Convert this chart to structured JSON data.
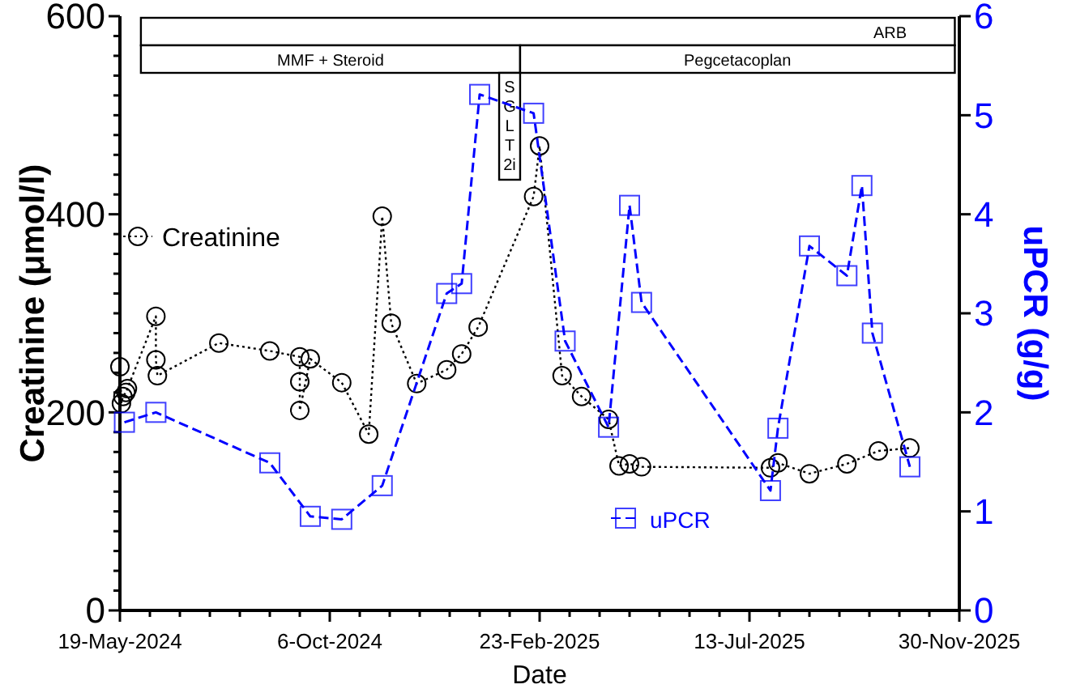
{
  "chart_data": {
    "type": "line",
    "xlabel": "Date",
    "ylabel": "Creatinine (μmol/l)",
    "y2label": "uPCR (g/g)",
    "xlim": [
      "2024-05-19",
      "2025-11-30"
    ],
    "xticks": [
      {
        "value": "2024-05-19",
        "label": "19-May-2024"
      },
      {
        "value": "2024-06-08",
        "label": null
      },
      {
        "value": "2024-06-28",
        "label": null
      },
      {
        "value": "2024-07-18",
        "label": null
      },
      {
        "value": "2024-08-07",
        "label": null
      },
      {
        "value": "2024-08-27",
        "label": null
      },
      {
        "value": "2024-09-16",
        "label": null
      },
      {
        "value": "2024-10-06",
        "label": "6-Oct-2024"
      },
      {
        "value": "2024-10-26",
        "label": null
      },
      {
        "value": "2024-11-15",
        "label": null
      },
      {
        "value": "2024-12-05",
        "label": null
      },
      {
        "value": "2024-12-25",
        "label": null
      },
      {
        "value": "2025-01-14",
        "label": null
      },
      {
        "value": "2025-02-03",
        "label": null
      },
      {
        "value": "2025-02-23",
        "label": "23-Feb-2025"
      },
      {
        "value": "2025-03-15",
        "label": null
      },
      {
        "value": "2025-04-04",
        "label": null
      },
      {
        "value": "2025-04-24",
        "label": null
      },
      {
        "value": "2025-05-14",
        "label": null
      },
      {
        "value": "2025-06-03",
        "label": null
      },
      {
        "value": "2025-06-23",
        "label": null
      },
      {
        "value": "2025-07-13",
        "label": "13-Jul-2025"
      },
      {
        "value": "2025-08-02",
        "label": null
      },
      {
        "value": "2025-08-22",
        "label": null
      },
      {
        "value": "2025-09-11",
        "label": null
      },
      {
        "value": "2025-10-01",
        "label": null
      },
      {
        "value": "2025-10-21",
        "label": null
      },
      {
        "value": "2025-11-10",
        "label": null
      },
      {
        "value": "2025-11-30",
        "label": "30-Nov-2025"
      }
    ],
    "ylim": [
      0,
      600
    ],
    "yticks": [
      0,
      {
        "value": 20,
        "label": null
      },
      {
        "value": 40,
        "label": null
      },
      {
        "value": 60,
        "label": null
      },
      {
        "value": 80,
        "label": null
      },
      {
        "value": 100,
        "label": null
      },
      {
        "value": 120,
        "label": null
      },
      {
        "value": 140,
        "label": null
      },
      {
        "value": 160,
        "label": null
      },
      {
        "value": 180,
        "label": null
      },
      200,
      {
        "value": 220,
        "label": null
      },
      {
        "value": 240,
        "label": null
      },
      {
        "value": 260,
        "label": null
      },
      {
        "value": 280,
        "label": null
      },
      {
        "value": 300,
        "label": null
      },
      {
        "value": 320,
        "label": null
      },
      {
        "value": 340,
        "label": null
      },
      {
        "value": 360,
        "label": null
      },
      {
        "value": 380,
        "label": null
      },
      400,
      {
        "value": 420,
        "label": null
      },
      {
        "value": 440,
        "label": null
      },
      {
        "value": 460,
        "label": null
      },
      {
        "value": 480,
        "label": null
      },
      {
        "value": 500,
        "label": null
      },
      {
        "value": 520,
        "label": null
      },
      {
        "value": 540,
        "label": null
      },
      {
        "value": 560,
        "label": null
      },
      {
        "value": 580,
        "label": null
      },
      600
    ],
    "y2lim": [
      0,
      6
    ],
    "y2ticks": [
      0,
      1,
      2,
      3,
      4,
      5,
      6
    ],
    "grid": false,
    "legend": "left",
    "bands": [
      {
        "axis": "x",
        "from": "2024-06-02",
        "to": "2025-11-27",
        "label": "ARB",
        "color": "#ffffff"
      },
      {
        "axis": "x",
        "from": "2024-06-02",
        "to": "2025-02-10",
        "label": "MMF + Steroid",
        "color": "#ffffff"
      },
      {
        "axis": "x",
        "from": "2025-02-10",
        "to": "2025-11-27",
        "label": "Pegcetacoplan",
        "color": "#ffffff"
      },
      {
        "axis": "x",
        "from": "2025-01-27",
        "to": "2025-02-10",
        "label": "SGLT2i",
        "color": "#ffffff"
      }
    ],
    "series": [
      {
        "name": "Creatinine",
        "color": "#000000",
        "marker": "circle",
        "line_style": "dotted",
        "x": [
          "2024-05-19",
          "2024-05-20",
          "2024-05-21",
          "2024-05-23",
          "2024-05-24",
          "2024-06-12",
          "2024-06-12",
          "2024-06-13",
          "2024-07-24",
          "2024-08-27",
          "2024-09-16",
          "2024-09-16",
          "2024-09-16",
          "2024-09-23",
          "2024-10-14",
          "2024-11-01",
          "2024-11-10",
          "2024-11-16",
          "2024-12-03",
          "2024-12-23",
          "2025-01-02",
          "2025-01-13",
          "2025-02-19",
          "2025-02-23",
          "2025-03-10",
          "2025-03-23",
          "2025-04-10",
          "2025-04-17",
          "2025-04-24",
          "2025-05-02",
          "2025-07-27",
          "2025-08-01",
          "2025-08-22",
          "2025-09-16",
          "2025-10-07",
          "2025-10-28"
        ],
        "values": [
          246,
          209,
          216,
          220,
          224,
          297,
          253,
          237,
          270,
          262,
          256,
          231,
          202,
          254,
          230,
          178,
          398,
          290,
          229,
          243,
          259,
          286,
          418,
          469,
          237,
          216,
          193,
          146,
          148,
          145,
          144,
          149,
          138,
          148,
          161,
          164
        ]
      },
      {
        "name": "uPCR",
        "color": "#0000ff",
        "marker": "square",
        "line_style": "dashed",
        "axis": "y2",
        "x": [
          "2024-05-22",
          "2024-06-12",
          "2024-08-27",
          "2024-09-23",
          "2024-10-14",
          "2024-11-10",
          "2024-12-23",
          "2025-01-02",
          "2025-01-14",
          "2025-02-19",
          "2025-03-12",
          "2025-04-10",
          "2025-04-24",
          "2025-05-02",
          "2025-07-27",
          "2025-08-01",
          "2025-08-22",
          "2025-09-16",
          "2025-09-26",
          "2025-10-03",
          "2025-10-28"
        ],
        "values": [
          1.9,
          2.0,
          1.49,
          0.95,
          0.92,
          1.26,
          3.2,
          3.3,
          5.21,
          5.02,
          2.72,
          1.85,
          4.09,
          3.11,
          1.21,
          1.84,
          3.68,
          3.38,
          4.29,
          2.8,
          1.45
        ]
      }
    ]
  }
}
